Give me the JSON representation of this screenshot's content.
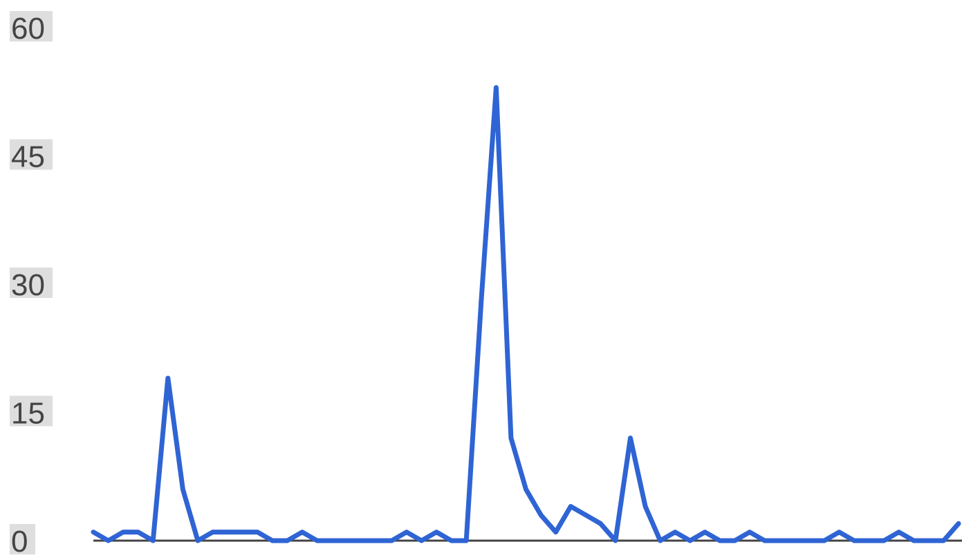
{
  "chart_data": {
    "type": "line",
    "title": "",
    "xlabel": "",
    "ylabel": "",
    "ylim": [
      0,
      60
    ],
    "yticks": [
      "0",
      "15",
      "30",
      "45",
      "60"
    ],
    "grid": false,
    "legend": "none",
    "series": [
      {
        "color": "#2f64d4",
        "values": [
          1,
          0,
          1,
          1,
          0,
          19,
          6,
          0,
          1,
          1,
          1,
          1,
          0,
          0,
          1,
          0,
          0,
          0,
          0,
          0,
          0,
          1,
          0,
          1,
          0,
          0,
          28,
          53,
          12,
          6,
          3,
          1,
          4,
          3,
          2,
          0,
          12,
          4,
          0,
          1,
          0,
          1,
          0,
          0,
          1,
          0,
          0,
          0,
          0,
          0,
          1,
          0,
          0,
          0,
          1,
          0,
          0,
          0,
          2
        ]
      }
    ]
  }
}
